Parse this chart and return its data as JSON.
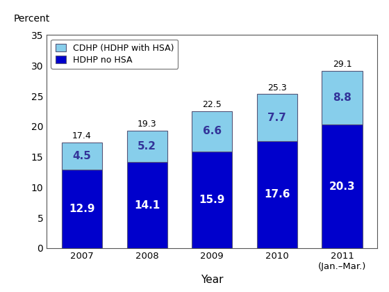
{
  "years": [
    "2007",
    "2008",
    "2009",
    "2010",
    "2011\n(Jan.–Mar.)"
  ],
  "hdhp_no_hsa": [
    12.9,
    14.1,
    15.9,
    17.6,
    20.3
  ],
  "cdhp_hsa": [
    4.5,
    5.2,
    6.6,
    7.7,
    8.8
  ],
  "totals": [
    17.4,
    19.3,
    22.5,
    25.3,
    29.1
  ],
  "color_hdhp": "#0000CC",
  "color_cdhp": "#87CEEB",
  "color_border": "#555577",
  "bar_width": 0.62,
  "ylim": [
    0,
    35
  ],
  "yticks": [
    0,
    5,
    10,
    15,
    20,
    25,
    30,
    35
  ],
  "ylabel": "Percent",
  "xlabel": "Year",
  "legend_cdhp": "CDHP (HDHP with HSA)",
  "legend_hdhp": "HDHP no HSA",
  "bg_color": "#ffffff",
  "plot_bg_color": "#ffffff",
  "fig_border_color": "#888888",
  "label_color_hdhp_inside": "#ffffff",
  "label_color_cdhp_inside": "#333399",
  "total_label_fontsize": 9,
  "inside_label_fontsize": 11
}
